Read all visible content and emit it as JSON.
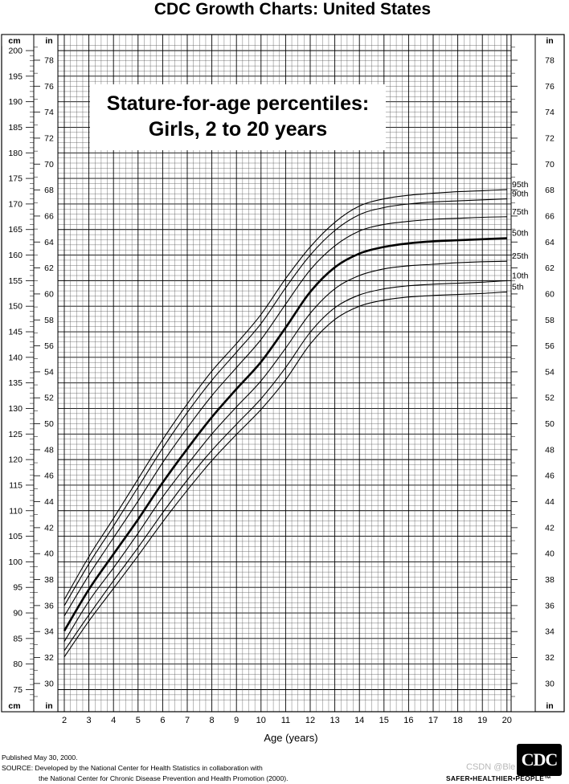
{
  "title": "CDC Growth Charts: United States",
  "subtitle_lines": [
    "Stature-for-age percentiles:",
    "Girls, 2 to 20 years"
  ],
  "unit_labels": {
    "cm": "cm",
    "in": "in"
  },
  "footer": {
    "line1": "Published May 30, 2000.",
    "line2": "SOURCE: Developed by the National Center for Health Statistics in collaboration with",
    "line3": "the National Center for Chronic Disease Prevention and Health Promotion (2000)."
  },
  "logo": {
    "text": "CDC",
    "tagline": "SAFER•HEALTHIER•PEOPLE™"
  },
  "watermark": "CSDN @Ble",
  "chart_data": {
    "type": "line",
    "xlabel": "Age (years)",
    "x_ticks": [
      2,
      3,
      4,
      5,
      6,
      7,
      8,
      9,
      10,
      11,
      12,
      13,
      14,
      15,
      16,
      17,
      18,
      19,
      20
    ],
    "x_range": [
      2,
      20.5
    ],
    "y_range_cm": [
      73,
      201
    ],
    "y_ticks_cm": [
      75,
      80,
      85,
      90,
      95,
      100,
      105,
      110,
      115,
      120,
      125,
      130,
      135,
      140,
      145,
      150,
      155,
      160,
      165,
      170,
      175,
      180,
      185,
      190,
      195,
      200
    ],
    "y_ticks_in": [
      30,
      32,
      34,
      36,
      38,
      40,
      42,
      44,
      46,
      48,
      50,
      52,
      54,
      56,
      58,
      60,
      62,
      64,
      66,
      68,
      70,
      72,
      74,
      76,
      78
    ],
    "grid": true,
    "x": [
      2,
      3,
      4,
      5,
      6,
      7,
      8,
      9,
      10,
      11,
      12,
      13,
      14,
      15,
      16,
      17,
      18,
      19,
      20
    ],
    "series": [
      {
        "name": "95th",
        "values": [
          92.6,
          101.0,
          108.5,
          116.2,
          123.9,
          130.9,
          137.3,
          142.7,
          148.4,
          155.4,
          161.6,
          166.4,
          169.6,
          171.0,
          171.7,
          172.1,
          172.4,
          172.6,
          172.8
        ]
      },
      {
        "name": "90th",
        "values": [
          91.4,
          99.6,
          107.0,
          114.6,
          122.2,
          129.2,
          135.5,
          141.0,
          146.6,
          153.6,
          160.0,
          164.8,
          167.9,
          169.3,
          170.0,
          170.4,
          170.6,
          170.8,
          171.0
        ]
      },
      {
        "name": "75th",
        "values": [
          89.4,
          97.4,
          104.7,
          111.9,
          119.4,
          126.2,
          132.5,
          138.0,
          143.5,
          150.4,
          157.1,
          161.8,
          164.7,
          166.0,
          166.6,
          167.0,
          167.2,
          167.4,
          167.5
        ]
      },
      {
        "name": "50th",
        "values": [
          86.5,
          94.6,
          101.5,
          108.3,
          115.5,
          122.1,
          128.3,
          133.8,
          139.1,
          145.8,
          152.8,
          157.6,
          160.3,
          161.6,
          162.3,
          162.7,
          162.9,
          163.1,
          163.3
        ]
      },
      {
        "name": "25th",
        "values": [
          84.4,
          92.3,
          98.8,
          105.6,
          112.7,
          119.0,
          125.0,
          130.3,
          135.4,
          141.8,
          148.6,
          153.4,
          156.0,
          157.3,
          157.9,
          158.2,
          158.5,
          158.7,
          158.8
        ]
      },
      {
        "name": "10th",
        "values": [
          82.6,
          89.6,
          96.3,
          102.8,
          109.6,
          116.0,
          121.8,
          126.9,
          131.9,
          138.0,
          144.9,
          149.7,
          152.2,
          153.4,
          154.0,
          154.3,
          154.5,
          154.7,
          155.0
        ]
      },
      {
        "name": "5th",
        "values": [
          81.4,
          88.4,
          94.8,
          101.2,
          107.8,
          114.0,
          119.8,
          124.9,
          129.8,
          135.6,
          142.6,
          147.4,
          150.0,
          151.2,
          151.8,
          152.1,
          152.3,
          152.5,
          152.8
        ]
      }
    ]
  }
}
